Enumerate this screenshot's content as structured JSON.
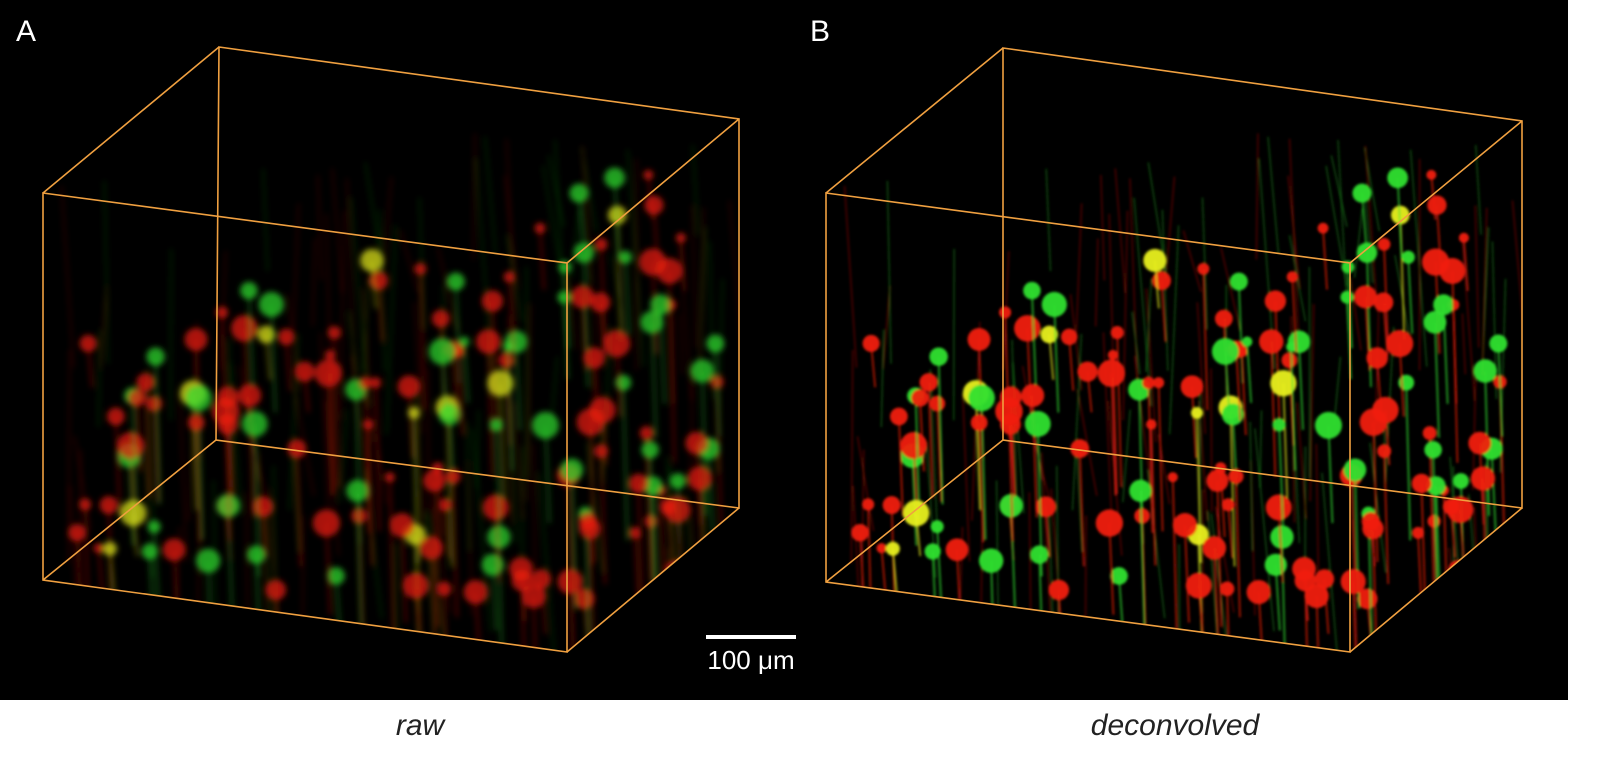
{
  "panels": [
    {
      "label": "A",
      "caption": "raw"
    },
    {
      "label": "B",
      "caption": "deconvolved"
    }
  ],
  "scale_bar": {
    "label": "100 μm"
  }
}
